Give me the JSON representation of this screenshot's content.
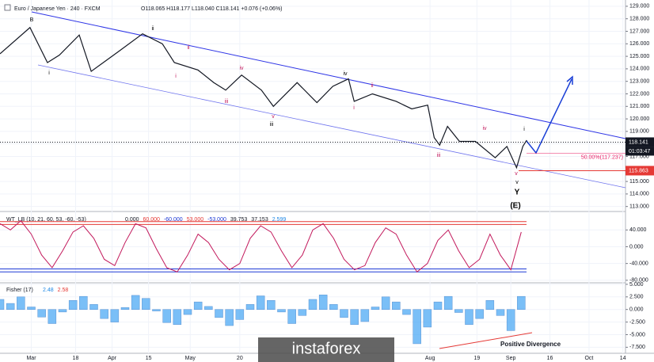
{
  "watermark": "instaforex",
  "chart_data": [
    {
      "type": "line",
      "title": "Euro / Japanese Yen · 240 · FXCM",
      "subtitle": "O118.065 H118.177 L118.040 C118.141 +0.076 (+0.06%)",
      "color": "#131722",
      "x": [
        -12,
        -0.5,
        6.2,
        10.8,
        18.4,
        23,
        33.6,
        42.7,
        50.3,
        54.9,
        64,
        70,
        74.6,
        80.7,
        88.3,
        92.9,
        102,
        109.6,
        115.7,
        121.7,
        123.9,
        130.9,
        140,
        146,
        152.1,
        154.6,
        156.7,
        159.7,
        164.3,
        170.4,
        178,
        182.5,
        186.2,
        188.6,
        190.1
      ],
      "values": [
        125.2,
        127.3,
        124.5,
        125.1,
        126.7,
        123.8,
        125.4,
        126.8,
        126.0,
        124.5,
        123.9,
        122.9,
        122.3,
        123.5,
        122.3,
        121.0,
        122.9,
        121.3,
        122.6,
        123.2,
        121.4,
        122.0,
        121.4,
        120.8,
        121.1,
        118.5,
        117.9,
        119.4,
        118.2,
        118.2,
        116.9,
        117.8,
        116.1,
        117.8,
        118.3
      ],
      "xlim": [
        -12,
        228
      ],
      "xticks": [
        {
          "value": 0,
          "label": "Mar"
        },
        {
          "value": 17,
          "label": "18"
        },
        {
          "value": 31,
          "label": "Apr"
        },
        {
          "value": 45,
          "label": "15"
        },
        {
          "value": 61,
          "label": "May"
        },
        {
          "value": 80,
          "label": "20"
        },
        {
          "value": 153,
          "label": "Aug"
        },
        {
          "value": 171,
          "label": "19"
        },
        {
          "value": 184,
          "label": "Sep"
        },
        {
          "value": 199,
          "label": "16"
        },
        {
          "value": 214,
          "label": "Oct"
        },
        {
          "value": 227,
          "label": "14"
        }
      ],
      "ylim": [
        112.6,
        129.5
      ],
      "yticks": [
        {
          "value": 113,
          "label": "113.000"
        },
        {
          "value": 114,
          "label": "114.000"
        },
        {
          "value": 115,
          "label": "115.000"
        },
        {
          "value": 116,
          "label": "116.000"
        },
        {
          "value": 117,
          "label": "117.000"
        },
        {
          "value": 118,
          "label": "118.000"
        },
        {
          "value": 119,
          "label": "119.000"
        },
        {
          "value": 120,
          "label": "120.000"
        },
        {
          "value": 121,
          "label": "121.000"
        },
        {
          "value": 122,
          "label": "122.000"
        },
        {
          "value": 123,
          "label": "123.000"
        },
        {
          "value": 124,
          "label": "124.000"
        },
        {
          "value": 125,
          "label": "125.000"
        },
        {
          "value": 126,
          "label": "126.000"
        },
        {
          "value": 127,
          "label": "127.000"
        },
        {
          "value": 128,
          "label": "128.000"
        },
        {
          "value": 129,
          "label": "129.000"
        }
      ],
      "last_price": 118.141,
      "countdown": "01:03:47",
      "fib_label": "50.00%(117.237)",
      "fib_value": 117.237,
      "low_price": 115.863,
      "annotations": [
        "B",
        "i",
        "ii",
        "ii",
        "i",
        "iv",
        "iii",
        "v",
        "iii",
        "iv",
        "ii",
        "i",
        "iii",
        "iv",
        "i",
        "v",
        "v",
        "Y",
        "(E)"
      ]
    },
    {
      "type": "line",
      "title": "WT_LB (10, 21, 60, 53, -60, -53)",
      "legend_values": [
        "0.000",
        "60.000",
        "-60.000",
        "53.000",
        "-53.000",
        "39.753",
        "37.153",
        "2.599"
      ],
      "color": "#c2185b",
      "x": [
        -12,
        -8,
        -4,
        0,
        4,
        8,
        12,
        16,
        20,
        24,
        28,
        32,
        36,
        40,
        44,
        48,
        52,
        56,
        60,
        64,
        68,
        72,
        76,
        80,
        84,
        88,
        92,
        96,
        100,
        104,
        108,
        112,
        116,
        120,
        124,
        128,
        132,
        136,
        140,
        144,
        148,
        152,
        156,
        160,
        164,
        168,
        172,
        176,
        180,
        184,
        188
      ],
      "values": [
        55,
        40,
        62,
        30,
        -20,
        -50,
        -10,
        35,
        50,
        20,
        -30,
        -45,
        10,
        55,
        45,
        -5,
        -50,
        -60,
        -20,
        30,
        10,
        -30,
        -55,
        -40,
        20,
        50,
        35,
        -10,
        -50,
        -20,
        40,
        55,
        20,
        -30,
        -55,
        -45,
        10,
        45,
        30,
        -20,
        -60,
        -40,
        15,
        40,
        -10,
        -50,
        -30,
        30,
        -20,
        -55,
        35
      ],
      "levels": [
        60,
        53,
        -60,
        -53
      ],
      "ylim": [
        -86,
        84
      ],
      "yticks": [
        {
          "value": 40,
          "label": "40.000"
        },
        {
          "value": 0,
          "label": "0.000"
        },
        {
          "value": -40,
          "label": "-40.000"
        },
        {
          "value": -80,
          "label": "-80.000"
        }
      ]
    },
    {
      "type": "bar",
      "title": "Fisher (17)",
      "legend_values": [
        "2.48",
        "2.58"
      ],
      "color": "#42a5f5",
      "x": [
        -12,
        -8,
        -4,
        0,
        4,
        8,
        12,
        16,
        20,
        24,
        28,
        32,
        36,
        40,
        44,
        48,
        52,
        56,
        60,
        64,
        68,
        72,
        76,
        80,
        84,
        88,
        92,
        96,
        100,
        104,
        108,
        112,
        116,
        120,
        124,
        128,
        132,
        136,
        140,
        144,
        148,
        152,
        156,
        160,
        164,
        168,
        172,
        176,
        180,
        184,
        188
      ],
      "values": [
        2.0,
        1.2,
        2.5,
        0.5,
        -1.5,
        -2.8,
        -0.5,
        1.8,
        2.6,
        1.0,
        -1.8,
        -2.5,
        0.4,
        2.8,
        2.2,
        -0.3,
        -2.6,
        -3.0,
        -1.0,
        1.5,
        0.6,
        -1.6,
        -3.2,
        -2.0,
        1.0,
        2.7,
        1.8,
        -0.5,
        -2.8,
        -1.2,
        2.0,
        2.9,
        1.0,
        -1.6,
        -3.0,
        -2.4,
        0.5,
        2.5,
        1.5,
        -1.0,
        -6.8,
        -3.5,
        1.5,
        2.6,
        -0.6,
        -3.0,
        -1.8,
        1.8,
        -1.2,
        -4.2,
        2.6
      ],
      "ylim": [
        -8.7,
        5.3
      ],
      "yticks": [
        {
          "value": 5,
          "label": "5.000"
        },
        {
          "value": 2.5,
          "label": "2.500"
        },
        {
          "value": 0,
          "label": "0.000"
        },
        {
          "value": -2.5,
          "label": "-2.500"
        },
        {
          "value": -5,
          "label": "-5.000"
        },
        {
          "value": -7.5,
          "label": "-7.500"
        }
      ],
      "annotations": [
        "Positive Divergence"
      ]
    }
  ]
}
